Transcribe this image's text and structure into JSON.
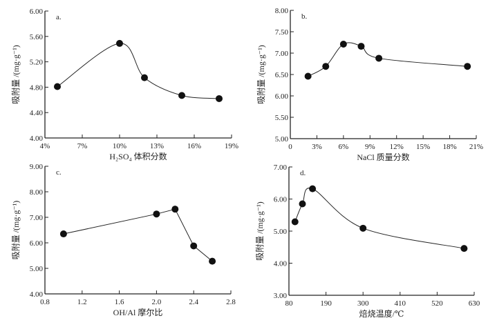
{
  "chart_data": [
    {
      "type": "line",
      "panel_label": "a.",
      "xlabel": "H₂SO₄ 体积分数",
      "ylabel": "吸附量 /(mg·g⁻¹)",
      "xlim": [
        4,
        19
      ],
      "ylim": [
        4.0,
        6.0
      ],
      "xticks": [
        4,
        7,
        10,
        13,
        16,
        19
      ],
      "xtick_labels": [
        "4%",
        "7%",
        "10%",
        "13%",
        "16%",
        "19%"
      ],
      "yticks": [
        4.0,
        4.4,
        4.8,
        5.2,
        5.6,
        6.0
      ],
      "ytick_labels": [
        "4.00",
        "4.40",
        "4.80",
        "5.20",
        "5.60",
        "6.00"
      ],
      "x": [
        5,
        10,
        12,
        15,
        18
      ],
      "y": [
        4.81,
        5.49,
        4.95,
        4.67,
        4.62
      ],
      "smooth": true
    },
    {
      "type": "line",
      "panel_label": "b.",
      "xlabel": "NaCl 质量分数",
      "ylabel": "吸附量 /(mg·g⁻¹)",
      "xlim": [
        0,
        21
      ],
      "ylim": [
        5.0,
        8.0
      ],
      "xticks": [
        0,
        3,
        6,
        9,
        12,
        15,
        18,
        21
      ],
      "xtick_labels": [
        "0",
        "3%",
        "6%",
        "9%",
        "12%",
        "15%",
        "18%",
        "21%"
      ],
      "yticks": [
        5.0,
        5.5,
        6.0,
        6.5,
        7.0,
        7.5,
        8.0
      ],
      "ytick_labels": [
        "5.00",
        "5.50",
        "6.00",
        "6.50",
        "7.00",
        "7.50",
        "8.00"
      ],
      "x": [
        2,
        4,
        6,
        8,
        10,
        20
      ],
      "y": [
        6.46,
        6.69,
        7.21,
        7.16,
        6.88,
        6.69
      ],
      "smooth": true
    },
    {
      "type": "line",
      "panel_label": "c.",
      "xlabel": "OH/Al 摩尔比",
      "ylabel": "吸附量 /(mg·g⁻¹)",
      "xlim": [
        0.8,
        2.8
      ],
      "ylim": [
        4.0,
        9.0
      ],
      "xticks": [
        0.8,
        1.2,
        1.6,
        2.0,
        2.4,
        2.8
      ],
      "xtick_labels": [
        "0.8",
        "1.2",
        "1.6",
        "2.0",
        "2.4",
        "2.8"
      ],
      "yticks": [
        4,
        5,
        6,
        7,
        8,
        9
      ],
      "ytick_labels": [
        "4.00",
        "5.00",
        "6.00",
        "7.00",
        "8.00",
        "9.00"
      ],
      "x": [
        1.0,
        2.0,
        2.2,
        2.4,
        2.6
      ],
      "y": [
        6.35,
        7.13,
        7.32,
        5.88,
        5.28
      ],
      "smooth": false
    },
    {
      "type": "line",
      "panel_label": "d.",
      "xlabel": "焙烧温度/℃",
      "ylabel": "吸附量 /(mg·g⁻¹)",
      "xlim": [
        80,
        630
      ],
      "ylim": [
        3.0,
        7.0
      ],
      "xticks": [
        80,
        190,
        300,
        410,
        520,
        630
      ],
      "xtick_labels": [
        "80",
        "190",
        "300",
        "410",
        "520",
        "630"
      ],
      "yticks": [
        3,
        4,
        5,
        6,
        7
      ],
      "ytick_labels": [
        "3.00",
        "4.00",
        "5.00",
        "6.00",
        "7.00"
      ],
      "x": [
        98,
        120,
        150,
        300,
        600
      ],
      "y": [
        5.29,
        5.85,
        6.32,
        5.09,
        4.46
      ],
      "smooth": true
    }
  ]
}
